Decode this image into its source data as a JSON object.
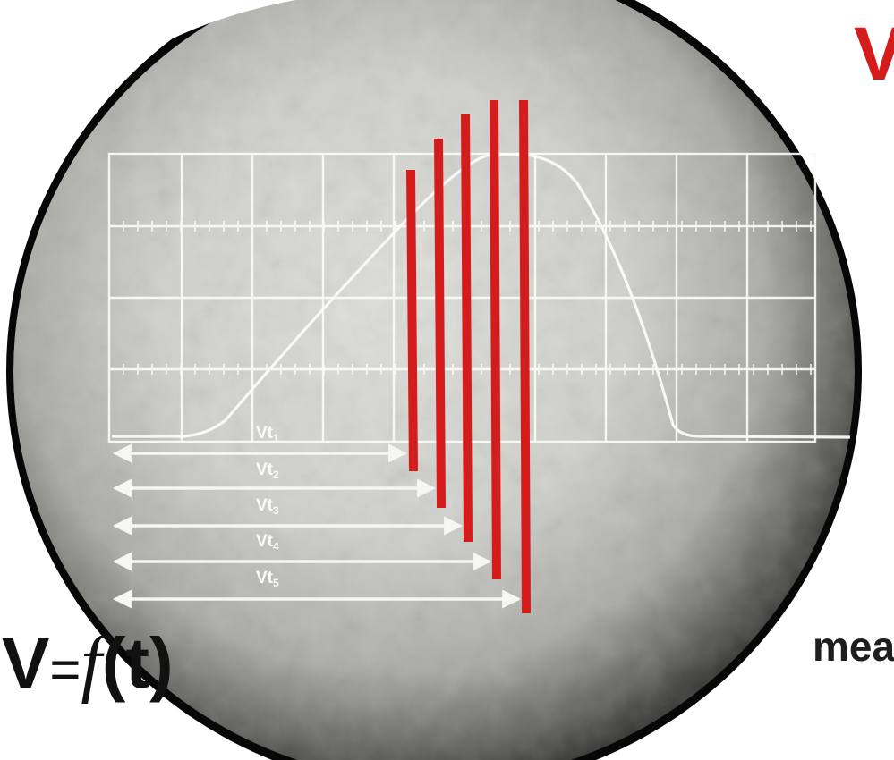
{
  "headline": "V",
  "subtext": "mea",
  "formula": {
    "lhs": "V",
    "eq": "=",
    "func": "f",
    "arg": "(t)"
  },
  "markers": [
    {
      "label": "Vt",
      "sub": "1"
    },
    {
      "label": "Vt",
      "sub": "2"
    },
    {
      "label": "Vt",
      "sub": "3"
    },
    {
      "label": "Vt",
      "sub": "4"
    },
    {
      "label": "Vt",
      "sub": "5"
    }
  ],
  "colors": {
    "accent_red": "#d41c1c",
    "trace": "#f4f4f2",
    "scope_frame": "#0a0a0a"
  }
}
